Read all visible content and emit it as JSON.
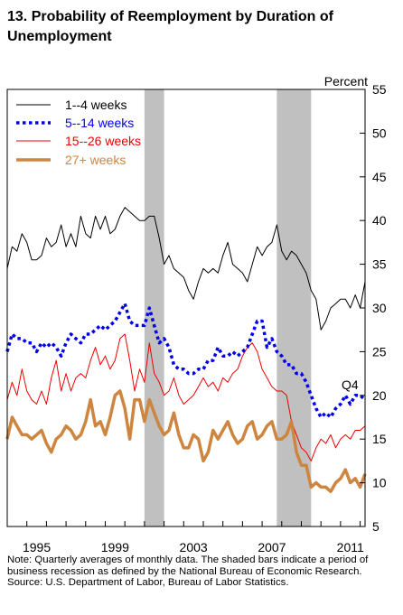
{
  "title": "13.  Probability of Reemployment by Duration of Unemployment",
  "notes": {
    "note": "Note: Quarterly averages of monthly data.  The shaded bars indicate a period of business recession as defined by the National Bureau of Economic Research.",
    "source": "Source: U.S. Department of Labor, Bureau of Labor Statistics."
  },
  "chart_data": {
    "type": "line",
    "ylabel": "Percent",
    "ylim": [
      5,
      55
    ],
    "yticks": [
      5,
      10,
      15,
      20,
      25,
      30,
      35,
      40,
      45,
      50,
      55
    ],
    "x_range": [
      1994.0,
      2012.25
    ],
    "x_ticks": [
      "1995",
      "1999",
      "2003",
      "2007",
      "2011"
    ],
    "x_tick_years": [
      1995,
      1999,
      2003,
      2007,
      2011
    ],
    "legend_position": "top-left",
    "annotation": "Q4",
    "recessions": [
      {
        "start": "2001 Q1",
        "end": "2001 Q4"
      },
      {
        "start": "2007 Q4",
        "end": "2009 Q2"
      }
    ],
    "x_start": "1994 Q1",
    "frequency": "quarterly",
    "series": [
      {
        "name": "1--4 weeks",
        "color": "#000000",
        "style": "thin",
        "values": [
          34.5,
          37.0,
          36.5,
          38.5,
          37.5,
          35.5,
          35.5,
          36.0,
          38.0,
          37.0,
          37.5,
          39.5,
          37.0,
          38.5,
          37.0,
          40.5,
          38.5,
          38.0,
          40.5,
          39.0,
          40.5,
          38.5,
          39.0,
          40.5,
          41.5,
          41.0,
          40.5,
          40.0,
          40.0,
          40.5,
          40.5,
          38.0,
          35.0,
          36.0,
          34.5,
          34.0,
          33.5,
          32.0,
          31.0,
          33.0,
          34.5,
          34.0,
          34.5,
          34.0,
          36.0,
          37.5,
          35.0,
          34.5,
          34.0,
          33.0,
          35.0,
          37.0,
          36.0,
          37.0,
          37.5,
          39.5,
          36.5,
          35.5,
          36.5,
          36.0,
          35.0,
          34.0,
          32.0,
          31.0,
          27.5,
          28.5,
          30.0,
          30.5,
          31.0,
          31.0,
          30.0,
          31.5,
          30.0,
          33.0
        ]
      },
      {
        "name": "5--14 weeks",
        "color": "#0000ee",
        "style": "dotted",
        "values": [
          25.0,
          27.0,
          26.5,
          26.5,
          26.0,
          26.0,
          25.0,
          26.0,
          25.5,
          26.0,
          25.5,
          24.5,
          26.0,
          27.0,
          26.5,
          26.0,
          27.0,
          27.0,
          27.5,
          28.0,
          27.5,
          28.0,
          28.5,
          29.5,
          30.5,
          28.5,
          28.0,
          28.0,
          28.0,
          30.0,
          28.0,
          26.0,
          26.5,
          25.5,
          23.5,
          23.0,
          23.0,
          22.5,
          22.5,
          23.0,
          23.0,
          24.0,
          24.0,
          25.5,
          24.5,
          24.5,
          25.0,
          24.5,
          25.0,
          25.5,
          27.0,
          28.5,
          28.5,
          25.5,
          26.5,
          25.0,
          24.5,
          23.5,
          23.5,
          22.5,
          22.5,
          21.5,
          20.0,
          18.5,
          17.5,
          18.0,
          17.5,
          18.5,
          19.0,
          20.0,
          19.0,
          20.0,
          20.0,
          19.5
        ]
      },
      {
        "name": "15--26 weeks",
        "color": "#ee0000",
        "style": "thin",
        "values": [
          19.5,
          21.5,
          20.0,
          23.0,
          20.5,
          19.5,
          19.0,
          20.5,
          19.0,
          22.0,
          24.0,
          20.5,
          22.5,
          20.5,
          22.0,
          22.5,
          22.0,
          24.0,
          25.5,
          23.5,
          24.5,
          23.0,
          24.0,
          26.5,
          27.0,
          24.0,
          20.5,
          23.0,
          21.5,
          26.0,
          22.5,
          21.5,
          20.0,
          20.5,
          22.0,
          20.0,
          19.0,
          19.5,
          20.0,
          21.0,
          22.0,
          21.0,
          21.5,
          20.5,
          22.0,
          21.5,
          22.5,
          23.0,
          24.5,
          25.5,
          26.0,
          25.0,
          23.0,
          22.0,
          21.0,
          20.5,
          20.5,
          20.0,
          17.0,
          15.5,
          14.0,
          13.5,
          12.5,
          14.0,
          15.0,
          14.5,
          15.5,
          14.0,
          15.0,
          15.5,
          15.0,
          16.0,
          16.0,
          16.5
        ]
      },
      {
        "name": "27+ weeks",
        "color": "#cd853f",
        "style": "thick",
        "values": [
          15.0,
          17.5,
          16.5,
          15.5,
          15.5,
          15.0,
          15.5,
          16.0,
          14.5,
          13.5,
          15.0,
          15.5,
          16.5,
          16.0,
          15.0,
          15.5,
          17.0,
          19.5,
          16.5,
          17.0,
          15.5,
          17.5,
          20.0,
          20.5,
          18.5,
          15.0,
          19.5,
          19.5,
          17.0,
          19.5,
          18.0,
          16.5,
          15.5,
          16.0,
          18.0,
          15.5,
          14.0,
          14.0,
          15.5,
          15.0,
          12.5,
          13.5,
          16.0,
          15.0,
          16.0,
          17.0,
          15.5,
          14.5,
          15.0,
          16.5,
          17.0,
          15.0,
          15.5,
          16.5,
          17.0,
          15.0,
          15.0,
          15.5,
          17.0,
          13.5,
          12.0,
          12.0,
          9.5,
          10.0,
          9.5,
          9.5,
          9.0,
          10.0,
          10.5,
          11.5,
          10.0,
          10.5,
          9.5,
          11.0
        ]
      }
    ]
  }
}
